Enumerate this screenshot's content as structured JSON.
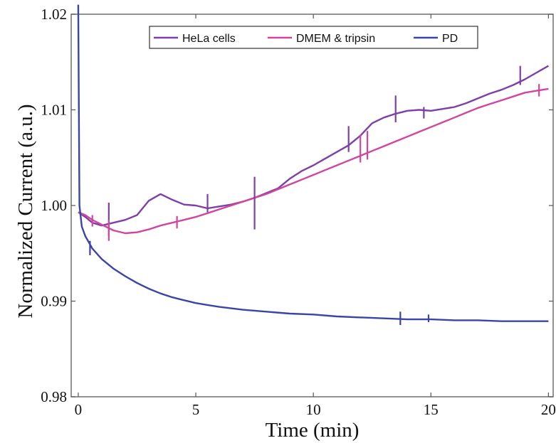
{
  "chart_data": {
    "type": "line",
    "xlabel": "Time (min)",
    "ylabel": "Normalized Current (a.u.)",
    "xlim": [
      -0.3,
      20.2
    ],
    "ylim": [
      0.98,
      1.02
    ],
    "xticks": [
      0,
      5,
      10,
      15,
      20
    ],
    "xtick_labels": [
      "0",
      "5",
      "10",
      "15",
      "20"
    ],
    "yticks": [
      0.98,
      0.99,
      1.0,
      1.01,
      1.02
    ],
    "ytick_labels": [
      "0.98",
      "0.99",
      "1.00",
      "1.01",
      "1.02"
    ],
    "grid": false,
    "legend_position": "top",
    "series": [
      {
        "name": "HeLa cells",
        "color": "#7e3fa8",
        "x": [
          0,
          0.3,
          0.6,
          1.0,
          1.5,
          2.0,
          2.5,
          3.0,
          3.5,
          4.0,
          4.5,
          5.0,
          5.5,
          6.0,
          6.5,
          7.0,
          7.5,
          8.0,
          8.5,
          9.0,
          9.5,
          10.0,
          10.5,
          11.0,
          11.5,
          12.0,
          12.5,
          13.0,
          13.5,
          14.0,
          14.5,
          15.0,
          15.5,
          16.0,
          16.5,
          17.0,
          17.5,
          18.0,
          18.5,
          19.0,
          19.5,
          20.0
        ],
        "y": [
          0.9993,
          0.9988,
          0.9982,
          0.9979,
          0.9982,
          0.9985,
          0.999,
          1.0005,
          1.0012,
          1.0006,
          1.0001,
          1.0,
          0.9997,
          0.9999,
          1.0001,
          1.0004,
          1.0008,
          1.0013,
          1.0018,
          1.0028,
          1.0036,
          1.0042,
          1.0049,
          1.0056,
          1.0063,
          1.0073,
          1.0086,
          1.0092,
          1.0096,
          1.0099,
          1.01,
          1.0099,
          1.0101,
          1.0103,
          1.0107,
          1.0112,
          1.0117,
          1.0121,
          1.0126,
          1.0132,
          1.0139,
          1.0146
        ]
      },
      {
        "name": "DMEM & tripsin",
        "color": "#d2459f",
        "x": [
          0,
          0.3,
          0.6,
          1.0,
          1.5,
          2.0,
          2.5,
          3.0,
          3.5,
          4.0,
          4.5,
          5.0,
          5.5,
          6.0,
          6.5,
          7.0,
          7.5,
          8.0,
          8.5,
          9.0,
          9.5,
          10.0,
          10.5,
          11.0,
          11.5,
          12.0,
          12.5,
          13.0,
          13.5,
          14.0,
          14.5,
          15.0,
          15.5,
          16.0,
          16.5,
          17.0,
          17.5,
          18.0,
          18.5,
          19.0,
          19.5,
          20.0
        ],
        "y": [
          0.9993,
          0.999,
          0.9985,
          0.998,
          0.9974,
          0.9971,
          0.9972,
          0.9975,
          0.9979,
          0.9982,
          0.9985,
          0.9988,
          0.9992,
          0.9996,
          1.0,
          1.0004,
          1.0008,
          1.0012,
          1.0017,
          1.0022,
          1.0027,
          1.0032,
          1.0037,
          1.0042,
          1.0047,
          1.0052,
          1.0057,
          1.0062,
          1.0067,
          1.0072,
          1.0077,
          1.0082,
          1.0087,
          1.0092,
          1.0097,
          1.0102,
          1.0106,
          1.011,
          1.0114,
          1.0118,
          1.012,
          1.0122
        ]
      },
      {
        "name": "PD",
        "color": "#3a45a8",
        "x": [
          0,
          0.05,
          0.15,
          0.3,
          0.6,
          1.0,
          1.5,
          2.0,
          2.5,
          3.0,
          3.5,
          4.0,
          4.5,
          5.0,
          5.5,
          6.0,
          7.0,
          8.0,
          9.0,
          10.0,
          11.0,
          12.0,
          13.0,
          14.0,
          15.0,
          16.0,
          17.0,
          18.0,
          19.0,
          20.0
        ],
        "y": [
          1.021,
          1.0,
          0.9978,
          0.9968,
          0.9955,
          0.9944,
          0.9934,
          0.9926,
          0.9919,
          0.9913,
          0.9908,
          0.9904,
          0.9901,
          0.9898,
          0.9896,
          0.9894,
          0.9891,
          0.9889,
          0.9887,
          0.9886,
          0.9884,
          0.9883,
          0.9882,
          0.9881,
          0.9881,
          0.988,
          0.988,
          0.9879,
          0.9879,
          0.9879
        ]
      }
    ],
    "spikes": [
      {
        "series": 0,
        "x": 1.3,
        "y": 0.9983,
        "low": 0.9968,
        "high": 1.0003
      },
      {
        "series": 0,
        "x": 5.5,
        "y": 0.9997,
        "low": 0.9993,
        "high": 1.0012
      },
      {
        "series": 0,
        "x": 7.5,
        "y": 1.0008,
        "low": 0.9975,
        "high": 1.003
      },
      {
        "series": 0,
        "x": 11.5,
        "y": 1.006,
        "low": 1.0056,
        "high": 1.0083
      },
      {
        "series": 0,
        "x": 13.5,
        "y": 1.0096,
        "low": 1.0087,
        "high": 1.0115
      },
      {
        "series": 0,
        "x": 14.7,
        "y": 1.01,
        "low": 1.0091,
        "high": 1.0103
      },
      {
        "series": 0,
        "x": 18.8,
        "y": 1.0128,
        "low": 1.0126,
        "high": 1.0146
      },
      {
        "series": 1,
        "x": 0.6,
        "y": 0.9985,
        "low": 0.9978,
        "high": 0.999
      },
      {
        "series": 1,
        "x": 1.3,
        "y": 0.9976,
        "low": 0.9963,
        "high": 0.9985
      },
      {
        "series": 1,
        "x": 4.2,
        "y": 0.9983,
        "low": 0.9976,
        "high": 0.9989
      },
      {
        "series": 1,
        "x": 12.0,
        "y": 1.0052,
        "low": 1.0045,
        "high": 1.0074
      },
      {
        "series": 1,
        "x": 12.3,
        "y": 1.0055,
        "low": 1.0048,
        "high": 1.0078
      },
      {
        "series": 1,
        "x": 19.6,
        "y": 1.012,
        "low": 1.0114,
        "high": 1.0127
      },
      {
        "series": 2,
        "x": 0.5,
        "y": 0.9957,
        "low": 0.9948,
        "high": 0.9963
      },
      {
        "series": 2,
        "x": 13.7,
        "y": 0.9881,
        "low": 0.9875,
        "high": 0.9889
      },
      {
        "series": 2,
        "x": 14.9,
        "y": 0.9881,
        "low": 0.9878,
        "high": 0.9886
      }
    ]
  }
}
